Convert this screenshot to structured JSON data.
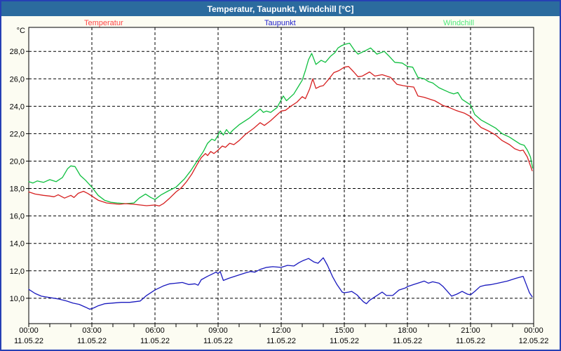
{
  "window": {
    "title": "Temperatur, Taupunkt, Windchill [°C]"
  },
  "colors": {
    "window_border": "#2640b4",
    "title_bar_bg": "#2b6b9e",
    "title_text": "#ffffff",
    "page_bg": "#fcfcf2",
    "plot_bg": "#ffffff",
    "grid": "#000000"
  },
  "chart_data": {
    "type": "line",
    "title": "Temperatur, Taupunkt, Windchill [°C]",
    "legend_position": "top",
    "grid": "dashed",
    "y_axis": {
      "unit_label": "°C",
      "min": 8.15,
      "max": 29.75,
      "ticks": [
        {
          "value": 10,
          "label": "10,0"
        },
        {
          "value": 12,
          "label": "12,0"
        },
        {
          "value": 14,
          "label": "14,0"
        },
        {
          "value": 16,
          "label": "16,0"
        },
        {
          "value": 18,
          "label": "18,0"
        },
        {
          "value": 20,
          "label": "20,0"
        },
        {
          "value": 22,
          "label": "22,0"
        },
        {
          "value": 24,
          "label": "24,0"
        },
        {
          "value": 26,
          "label": "26,0"
        },
        {
          "value": 28,
          "label": "28,0"
        }
      ]
    },
    "x_axis": {
      "min_hour": 0,
      "max_hour": 24,
      "major_step": 3,
      "minor_step": 1,
      "ticks": [
        {
          "time": "00:00",
          "date": "11.05.22"
        },
        {
          "time": "03:00",
          "date": "11.05.22"
        },
        {
          "time": "06:00",
          "date": "11.05.22"
        },
        {
          "time": "09:00",
          "date": "11.05.22"
        },
        {
          "time": "12:00",
          "date": "11.05.22"
        },
        {
          "time": "15:00",
          "date": "11.05.22"
        },
        {
          "time": "18:00",
          "date": "11.05.22"
        },
        {
          "time": "21:00",
          "date": "11.05.22"
        },
        {
          "time": "00:00",
          "date": "12.05.22"
        }
      ]
    },
    "series": [
      {
        "name": "Temperatur",
        "color": "#d62020",
        "label_color": "#ff4545",
        "points": [
          [
            0,
            17.75
          ],
          [
            0.3,
            17.6
          ],
          [
            0.7,
            17.5
          ],
          [
            1,
            17.45
          ],
          [
            1.2,
            17.4
          ],
          [
            1.4,
            17.55
          ],
          [
            1.7,
            17.3
          ],
          [
            2,
            17.5
          ],
          [
            2.15,
            17.35
          ],
          [
            2.35,
            17.65
          ],
          [
            2.6,
            17.8
          ],
          [
            2.8,
            17.65
          ],
          [
            3,
            17.45
          ],
          [
            3.3,
            17.15
          ],
          [
            3.7,
            16.95
          ],
          [
            4,
            16.9
          ],
          [
            4.3,
            16.85
          ],
          [
            4.6,
            16.9
          ],
          [
            5,
            16.85
          ],
          [
            5.3,
            16.8
          ],
          [
            5.6,
            16.75
          ],
          [
            6,
            16.8
          ],
          [
            6.2,
            16.73
          ],
          [
            6.4,
            16.9
          ],
          [
            6.7,
            17.3
          ],
          [
            7,
            17.75
          ],
          [
            7.25,
            18.05
          ],
          [
            7.5,
            18.5
          ],
          [
            7.75,
            19.05
          ],
          [
            8,
            19.75
          ],
          [
            8.2,
            20.25
          ],
          [
            8.4,
            20.55
          ],
          [
            8.5,
            20.4
          ],
          [
            8.65,
            20.7
          ],
          [
            8.8,
            20.55
          ],
          [
            9,
            20.8
          ],
          [
            9.2,
            21.1
          ],
          [
            9.35,
            21
          ],
          [
            9.55,
            21.3
          ],
          [
            9.75,
            21.2
          ],
          [
            10,
            21.5
          ],
          [
            10.3,
            21.95
          ],
          [
            10.7,
            22.4
          ],
          [
            11,
            22.8
          ],
          [
            11.2,
            22.6
          ],
          [
            11.5,
            22.95
          ],
          [
            11.75,
            23.3
          ],
          [
            12,
            23.65
          ],
          [
            12.2,
            23.7
          ],
          [
            12.5,
            24.05
          ],
          [
            12.75,
            24.3
          ],
          [
            13,
            24.7
          ],
          [
            13.15,
            24.55
          ],
          [
            13.35,
            25.25
          ],
          [
            13.5,
            26
          ],
          [
            13.65,
            25.3
          ],
          [
            13.85,
            25.45
          ],
          [
            14,
            25.5
          ],
          [
            14.25,
            25.95
          ],
          [
            14.5,
            26.45
          ],
          [
            14.75,
            26.6
          ],
          [
            15,
            26.85
          ],
          [
            15.2,
            26.9
          ],
          [
            15.45,
            26.5
          ],
          [
            15.65,
            26.15
          ],
          [
            15.85,
            26.2
          ],
          [
            16.2,
            26.5
          ],
          [
            16.45,
            26.2
          ],
          [
            16.8,
            26.3
          ],
          [
            17.2,
            26.1
          ],
          [
            17.5,
            25.6
          ],
          [
            17.8,
            25.5
          ],
          [
            18,
            25.45
          ],
          [
            18.3,
            25.4
          ],
          [
            18.5,
            24.75
          ],
          [
            18.8,
            24.65
          ],
          [
            19.1,
            24.5
          ],
          [
            19.3,
            24.4
          ],
          [
            19.7,
            24.05
          ],
          [
            20,
            23.9
          ],
          [
            20.3,
            23.7
          ],
          [
            20.7,
            23.5
          ],
          [
            21,
            23.25
          ],
          [
            21.2,
            22.9
          ],
          [
            21.5,
            22.45
          ],
          [
            21.85,
            22.2
          ],
          [
            22.2,
            21.9
          ],
          [
            22.5,
            21.5
          ],
          [
            22.85,
            21.2
          ],
          [
            23.1,
            20.9
          ],
          [
            23.35,
            20.75
          ],
          [
            23.5,
            20.8
          ],
          [
            23.7,
            20.3
          ],
          [
            23.93,
            19.3
          ]
        ]
      },
      {
        "name": "Taupunkt",
        "color": "#1919be",
        "label_color": "#2222cc",
        "points": [
          [
            0,
            10.65
          ],
          [
            0.3,
            10.35
          ],
          [
            0.6,
            10.15
          ],
          [
            1,
            10.05
          ],
          [
            1.4,
            9.95
          ],
          [
            1.8,
            9.8
          ],
          [
            2.1,
            9.65
          ],
          [
            2.4,
            9.55
          ],
          [
            2.7,
            9.35
          ],
          [
            2.9,
            9.2
          ],
          [
            3.1,
            9.3
          ],
          [
            3.3,
            9.45
          ],
          [
            3.6,
            9.6
          ],
          [
            4,
            9.65
          ],
          [
            4.4,
            9.7
          ],
          [
            4.8,
            9.7
          ],
          [
            5.3,
            9.8
          ],
          [
            5.6,
            10.2
          ],
          [
            6,
            10.6
          ],
          [
            6.4,
            10.9
          ],
          [
            6.7,
            11.05
          ],
          [
            7,
            11.1
          ],
          [
            7.3,
            11.15
          ],
          [
            7.6,
            11
          ],
          [
            7.9,
            11.05
          ],
          [
            8.05,
            10.95
          ],
          [
            8.2,
            11.35
          ],
          [
            8.5,
            11.6
          ],
          [
            8.7,
            11.75
          ],
          [
            8.9,
            11.9
          ],
          [
            9,
            11.8
          ],
          [
            9.1,
            11.95
          ],
          [
            9.25,
            11.3
          ],
          [
            9.5,
            11.45
          ],
          [
            10,
            11.7
          ],
          [
            10.3,
            11.85
          ],
          [
            10.55,
            11.95
          ],
          [
            10.75,
            11.9
          ],
          [
            11,
            12.1
          ],
          [
            11.3,
            12.25
          ],
          [
            11.6,
            12.3
          ],
          [
            12,
            12.25
          ],
          [
            12.3,
            12.4
          ],
          [
            12.6,
            12.35
          ],
          [
            12.85,
            12.6
          ],
          [
            13.05,
            12.75
          ],
          [
            13.3,
            12.9
          ],
          [
            13.55,
            12.65
          ],
          [
            13.75,
            12.55
          ],
          [
            14,
            12.95
          ],
          [
            14.2,
            12.4
          ],
          [
            14.45,
            11.55
          ],
          [
            14.65,
            11
          ],
          [
            14.9,
            10.45
          ],
          [
            15,
            10.4
          ],
          [
            15.2,
            10.45
          ],
          [
            15.35,
            10.5
          ],
          [
            15.6,
            10.25
          ],
          [
            15.9,
            9.75
          ],
          [
            16.05,
            9.6
          ],
          [
            16.2,
            9.85
          ],
          [
            16.45,
            10.1
          ],
          [
            16.65,
            10.3
          ],
          [
            16.8,
            10.45
          ],
          [
            17,
            10.2
          ],
          [
            17.3,
            10.2
          ],
          [
            17.6,
            10.6
          ],
          [
            17.9,
            10.75
          ],
          [
            18,
            10.85
          ],
          [
            18.3,
            11
          ],
          [
            18.6,
            11.15
          ],
          [
            18.8,
            11.25
          ],
          [
            19,
            11.1
          ],
          [
            19.2,
            11.2
          ],
          [
            19.5,
            11.1
          ],
          [
            19.7,
            10.85
          ],
          [
            19.9,
            10.5
          ],
          [
            20.1,
            10.15
          ],
          [
            20.35,
            10.3
          ],
          [
            20.6,
            10.5
          ],
          [
            20.85,
            10.3
          ],
          [
            21,
            10.25
          ],
          [
            21.2,
            10.5
          ],
          [
            21.45,
            10.85
          ],
          [
            21.7,
            10.95
          ],
          [
            22,
            11
          ],
          [
            22.3,
            11.1
          ],
          [
            22.75,
            11.25
          ],
          [
            23.15,
            11.45
          ],
          [
            23.5,
            11.6
          ],
          [
            23.65,
            11
          ],
          [
            23.8,
            10.4
          ],
          [
            23.93,
            10.1
          ]
        ]
      },
      {
        "name": "Windchill",
        "color": "#0fbf3f",
        "label_color": "#4fe97d",
        "points": [
          [
            0,
            18.5
          ],
          [
            0.2,
            18.4
          ],
          [
            0.4,
            18.55
          ],
          [
            0.7,
            18.45
          ],
          [
            1,
            18.65
          ],
          [
            1.3,
            18.5
          ],
          [
            1.6,
            18.8
          ],
          [
            1.85,
            19.45
          ],
          [
            2,
            19.65
          ],
          [
            2.2,
            19.6
          ],
          [
            2.45,
            18.95
          ],
          [
            2.7,
            18.6
          ],
          [
            3,
            18.1
          ],
          [
            3.3,
            17.5
          ],
          [
            3.6,
            17.15
          ],
          [
            3.9,
            17
          ],
          [
            4.2,
            16.95
          ],
          [
            4.6,
            16.9
          ],
          [
            5,
            16.95
          ],
          [
            5.25,
            17.3
          ],
          [
            5.55,
            17.6
          ],
          [
            5.8,
            17.35
          ],
          [
            6,
            17.2
          ],
          [
            6.3,
            17.55
          ],
          [
            6.6,
            17.8
          ],
          [
            7,
            18.1
          ],
          [
            7.4,
            18.7
          ],
          [
            7.7,
            19.3
          ],
          [
            8,
            20
          ],
          [
            8.3,
            20.7
          ],
          [
            8.5,
            21.3
          ],
          [
            8.7,
            21.6
          ],
          [
            8.85,
            21.5
          ],
          [
            9,
            21.9
          ],
          [
            9.1,
            22.2
          ],
          [
            9.25,
            21.9
          ],
          [
            9.4,
            22.3
          ],
          [
            9.55,
            22
          ],
          [
            9.7,
            22.25
          ],
          [
            10,
            22.65
          ],
          [
            10.5,
            23.15
          ],
          [
            11,
            23.8
          ],
          [
            11.15,
            23.55
          ],
          [
            11.3,
            23.65
          ],
          [
            11.5,
            23.55
          ],
          [
            11.8,
            23.9
          ],
          [
            12.1,
            24.75
          ],
          [
            12.25,
            24.4
          ],
          [
            12.6,
            24.9
          ],
          [
            12.8,
            25.4
          ],
          [
            13,
            25.9
          ],
          [
            13.15,
            26.6
          ],
          [
            13.3,
            27.4
          ],
          [
            13.45,
            27.85
          ],
          [
            13.65,
            27.05
          ],
          [
            13.9,
            27.35
          ],
          [
            14.1,
            27.2
          ],
          [
            14.35,
            27.65
          ],
          [
            14.55,
            27.9
          ],
          [
            14.7,
            28.25
          ],
          [
            14.85,
            28.4
          ],
          [
            15,
            28.5
          ],
          [
            15.25,
            28.6
          ],
          [
            15.45,
            28.15
          ],
          [
            15.65,
            27.8
          ],
          [
            16,
            28.05
          ],
          [
            16.25,
            28.25
          ],
          [
            16.55,
            27.8
          ],
          [
            16.9,
            28
          ],
          [
            17.1,
            27.7
          ],
          [
            17.4,
            27.2
          ],
          [
            17.75,
            27.15
          ],
          [
            18,
            26.9
          ],
          [
            18.25,
            26.85
          ],
          [
            18.5,
            26.1
          ],
          [
            18.8,
            26
          ],
          [
            19,
            25.8
          ],
          [
            19.2,
            25.7
          ],
          [
            19.5,
            25.35
          ],
          [
            20,
            25
          ],
          [
            20.2,
            24.9
          ],
          [
            20.4,
            25
          ],
          [
            20.6,
            24.5
          ],
          [
            21,
            24.1
          ],
          [
            21.2,
            23.4
          ],
          [
            21.5,
            23
          ],
          [
            21.85,
            22.7
          ],
          [
            22.2,
            22.4
          ],
          [
            22.5,
            22
          ],
          [
            22.85,
            21.75
          ],
          [
            23.1,
            21.5
          ],
          [
            23.35,
            21.25
          ],
          [
            23.55,
            21.15
          ],
          [
            23.7,
            20.8
          ],
          [
            23.85,
            20.3
          ],
          [
            23.95,
            19.5
          ]
        ]
      }
    ]
  }
}
